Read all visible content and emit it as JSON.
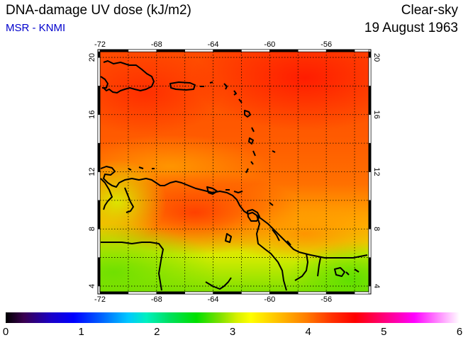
{
  "header": {
    "title": "DNA-damage UV dose (kJ/m2)",
    "subtitle": "MSR - KNMI",
    "condition": "Clear-sky",
    "date": "19 August 1963"
  },
  "map": {
    "lon_range": [
      -72,
      -53
    ],
    "lat_range": [
      3.6,
      20.4
    ],
    "lon_ticks": [
      "-72",
      "-68",
      "-64",
      "-60",
      "-56"
    ],
    "lat_ticks": [
      "4",
      "8",
      "12",
      "16",
      "20"
    ],
    "grid": true
  },
  "colorbar": {
    "labels": [
      "0",
      "1",
      "2",
      "3",
      "4",
      "5",
      "6"
    ],
    "range": [
      0,
      6
    ]
  },
  "colors": {
    "title": "#000000",
    "subtitle": "#0000cc",
    "coast": "#000000",
    "grid": "#000000"
  }
}
